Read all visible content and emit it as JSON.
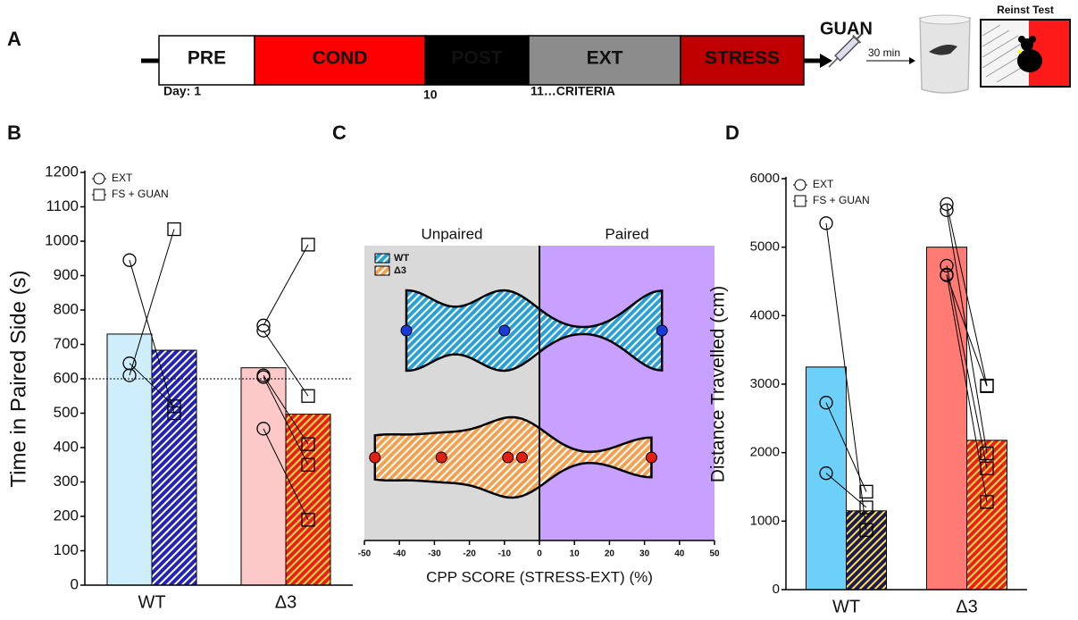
{
  "panel_labels": [
    "A",
    "B",
    "C",
    "D"
  ],
  "timeline": {
    "stages": [
      {
        "label": "PRE",
        "color": "#ffffff",
        "text_color": "#000000"
      },
      {
        "label": "COND",
        "color": "#ff0000",
        "text_color": "#8b0000"
      },
      {
        "label": "POST",
        "color": "#000000",
        "text_color": "#ffffff"
      },
      {
        "label": "EXT",
        "color": "#8c8c8c",
        "text_color": "#111111"
      },
      {
        "label": "STRESS",
        "color": "#c00000",
        "text_color": "#4a0000"
      }
    ],
    "days": [
      "Day: 1",
      "10",
      "11…CRITERIA"
    ],
    "drug": "GUAN",
    "delay": "30 min",
    "test": "Reinst Test"
  },
  "chart_data": [
    {
      "type": "bar",
      "ylabel": "Time in Paired Side (s)",
      "categories": [
        "WT",
        "Δ3"
      ],
      "ylim": [
        0,
        1200
      ],
      "yticks": [
        0,
        100,
        200,
        300,
        400,
        500,
        600,
        700,
        800,
        900,
        1000,
        1100,
        1200
      ],
      "reference_line": 600,
      "legend": "top-left",
      "series": [
        {
          "name": "EXT",
          "marker": "circle",
          "colors": [
            "#cdeefa",
            "#fcc8c8"
          ],
          "values": [
            730,
            632
          ],
          "points": [
            [
              945,
              645,
              610
            ],
            [
              755,
              740,
              610,
              605,
              455
            ]
          ]
        },
        {
          "name": "FS + GUAN",
          "marker": "square",
          "colors": [
            "#2323b8",
            "#e82020"
          ],
          "hatch_colors": [
            "#ffffff",
            "#ffe040"
          ],
          "values": [
            683,
            497
          ],
          "points": [
            [
              500,
              520,
              1035
            ],
            [
              990,
              550,
              410,
              350,
              190
            ]
          ]
        }
      ]
    },
    {
      "type": "violin",
      "xlabel": "CPP SCORE (STRESS-EXT) (%)",
      "xlim": [
        -50,
        50
      ],
      "xticks": [
        -50,
        -40,
        -30,
        -20,
        -10,
        0,
        10,
        20,
        30,
        40,
        50
      ],
      "legend": "top-left",
      "regions": [
        {
          "label": "Unpaired",
          "color": "#d9d9d9"
        },
        {
          "label": "Paired",
          "color": "#c8a0ff"
        }
      ],
      "series": [
        {
          "name": "WT",
          "color": "#2aa0d8",
          "hatch_color": "#ffffff",
          "point_color": "#1a3ad8",
          "values": [
            -38,
            -10,
            35
          ]
        },
        {
          "name": "Δ3",
          "color": "#f5a050",
          "hatch_color": "#ffffff",
          "point_color": "#e02010",
          "values": [
            -47,
            -28,
            -9,
            -5,
            32
          ]
        }
      ]
    },
    {
      "type": "bar",
      "ylabel": "Distance Travelled (cm)",
      "categories": [
        "WT",
        "Δ3"
      ],
      "ylim": [
        0,
        6000
      ],
      "yticks": [
        0,
        1000,
        2000,
        3000,
        4000,
        5000,
        6000
      ],
      "legend": "top-left",
      "series": [
        {
          "name": "EXT",
          "marker": "circle",
          "colors": [
            "#6cd0f8",
            "#ff7b73"
          ],
          "values": [
            3250,
            5000
          ],
          "points": [
            [
              5350,
              2730,
              1700
            ],
            [
              5630,
              5540,
              4730,
              4600,
              4590
            ]
          ]
        },
        {
          "name": "FS + GUAN",
          "marker": "square",
          "colors": [
            "#1a1a5a",
            "#e82020"
          ],
          "hatch_colors": [
            "#ffe040",
            "#ffe040"
          ],
          "values": [
            1150,
            2180
          ],
          "points": [
            [
              870,
              1430,
              1200
            ],
            [
              2980,
              1990,
              1770,
              1280,
              2970
            ]
          ]
        }
      ]
    }
  ]
}
